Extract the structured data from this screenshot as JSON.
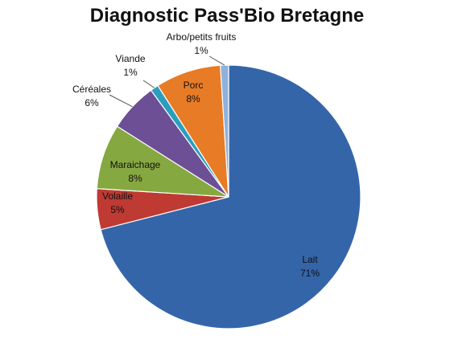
{
  "chart_data": {
    "type": "pie",
    "title": "Diagnostic Pass'Bio Bretagne",
    "slices": [
      {
        "label": "Lait",
        "value": 71,
        "pct_label": "71%",
        "color": "#3465a8"
      },
      {
        "label": "Volaille",
        "value": 5,
        "pct_label": "5%",
        "color": "#be3a33"
      },
      {
        "label": "Maraichage",
        "value": 8,
        "pct_label": "8%",
        "color": "#86a841"
      },
      {
        "label": "Céréales",
        "value": 6,
        "pct_label": "6%",
        "color": "#6d4f96"
      },
      {
        "label": "Viande",
        "value": 1,
        "pct_label": "1%",
        "color": "#2b9ec0"
      },
      {
        "label": "Porc",
        "value": 8,
        "pct_label": "8%",
        "color": "#e87b25"
      },
      {
        "label": "Arbo/petits fruits",
        "value": 1,
        "pct_label": "1%",
        "color": "#8fb2dd"
      }
    ],
    "grid": false,
    "legend": "none"
  }
}
